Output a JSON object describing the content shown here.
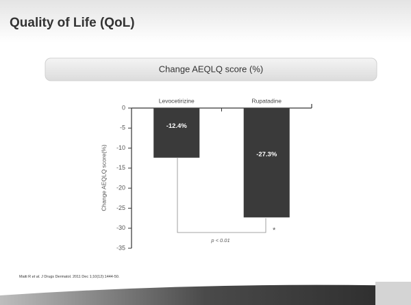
{
  "slide_title": "Quality of Life (QoL)",
  "chart_data": {
    "type": "bar",
    "title": "Change AEQLQ score (%)",
    "y_label": "Change AEQLQ score(%)",
    "categories": [
      "Levocetirizine",
      "Rupatadine"
    ],
    "values": [
      -12.4,
      -27.3
    ],
    "value_labels": [
      "-12.4%",
      "-27.3%"
    ],
    "color": "#3a3a3a",
    "ylim": [
      -35,
      0
    ],
    "yticks": [
      0,
      -5,
      -10,
      -15,
      -20,
      -25,
      -30,
      -35
    ],
    "annotations": [
      "p < 0.01",
      "*"
    ]
  },
  "footnote": [
    "Maiti R ",
    "et al.",
    " J Drugs Dermatol. 2011 Dec 1;10(12):1444-50."
  ]
}
